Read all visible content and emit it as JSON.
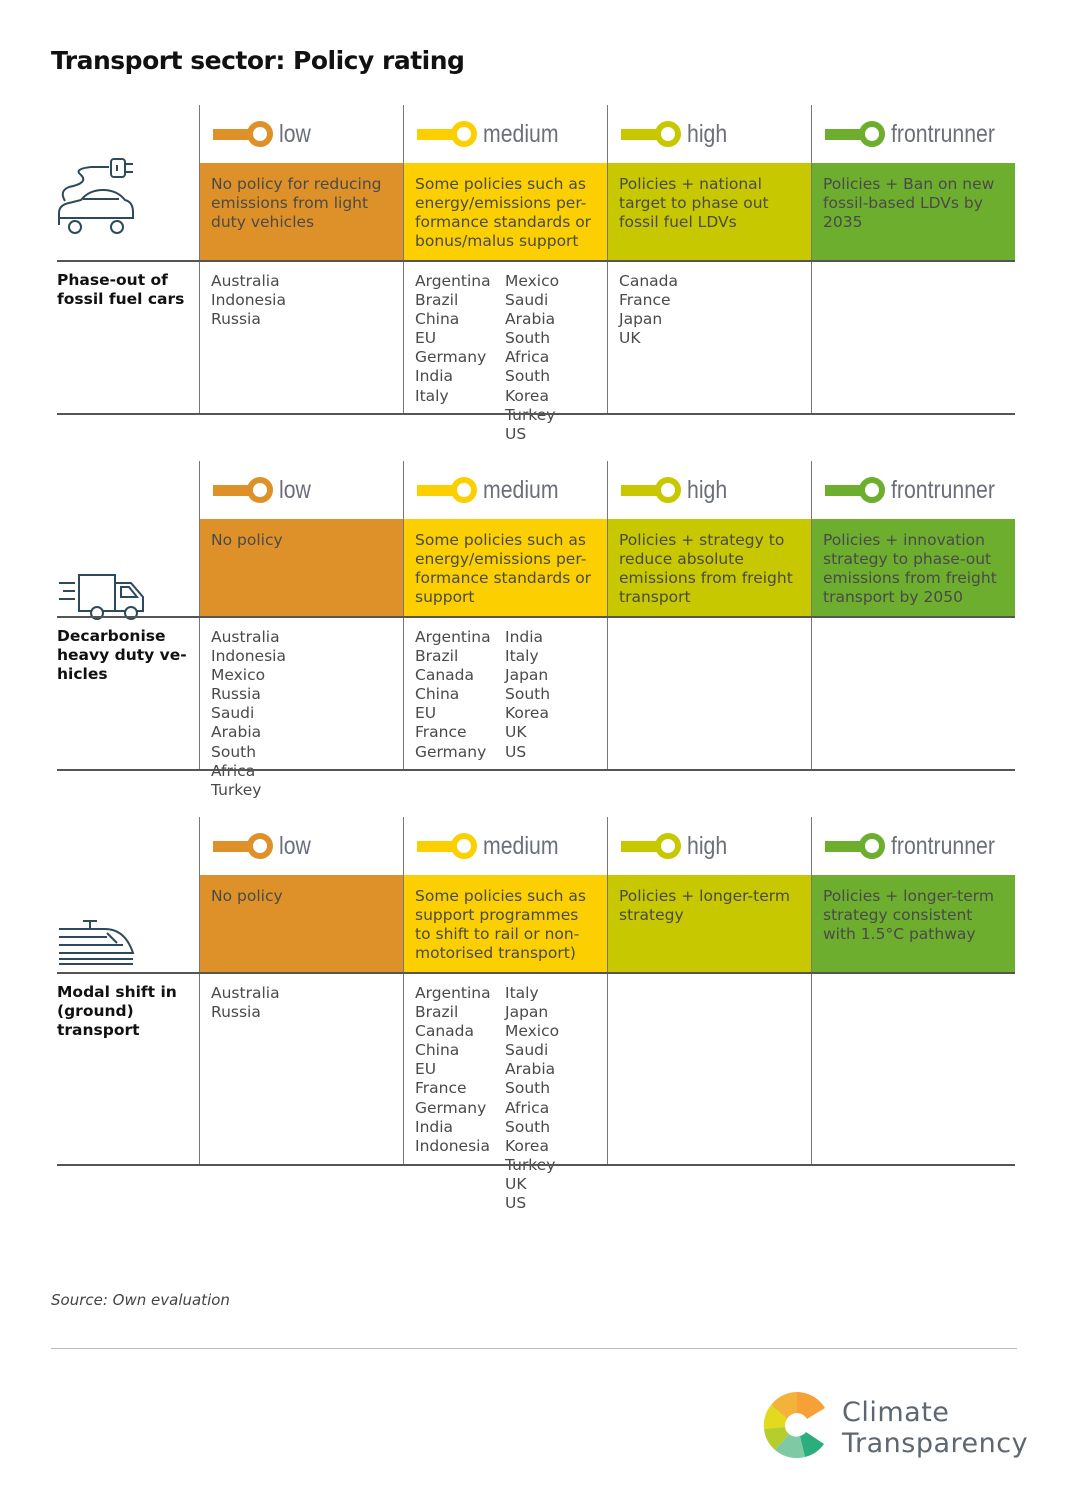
{
  "title": "Transport sector: Policy rating",
  "colors": {
    "low": "#DE9128",
    "medium": "#FCD000",
    "high": "#C8C800",
    "frontrunner": "#6DAE2F"
  },
  "levels": [
    "low",
    "medium",
    "high",
    "frontrunner"
  ],
  "sections": [
    {
      "label": "Phase-out of fossil fuel cars",
      "icon": "electric-car-icon",
      "descriptions": [
        "No policy for reducing emissions from light duty vehicles",
        "Some policies such as energy/emissions per-formance standards or bonus/malus support",
        "Policies + national target to phase out fossil fuel LDVs",
        "Policies + Ban on new fossil-based LDVs by 2035"
      ],
      "countries": [
        [
          [
            "Australia",
            "Indonesia",
            "Russia"
          ]
        ],
        [
          [
            "Argentina",
            "Brazil",
            "China",
            "EU",
            "Germany",
            "India",
            "Italy"
          ],
          [
            "Mexico",
            "Saudi Arabia",
            "South Africa",
            "South Korea",
            "Turkey",
            "US"
          ]
        ],
        [
          [
            "Canada",
            "France",
            "Japan",
            "UK"
          ]
        ],
        []
      ]
    },
    {
      "label": "Decarbonise heavy duty ve-hicles",
      "icon": "truck-icon",
      "descriptions": [
        "No policy",
        "Some policies such as energy/emissions per-formance standards or support",
        "Policies + strategy to reduce absolute emissions from freight transport",
        "Policies + innovation strategy to phase-out emissions from freight transport by 2050"
      ],
      "countries": [
        [
          [
            "Australia",
            "Indonesia",
            "Mexico",
            "Russia",
            "Saudi Arabia",
            "South Africa",
            "Turkey"
          ]
        ],
        [
          [
            "Argentina",
            "Brazil",
            "Canada",
            "China",
            "EU",
            "France",
            "Germany"
          ],
          [
            "India",
            "Italy",
            "Japan",
            "South Korea",
            "UK",
            "US"
          ]
        ],
        [],
        []
      ]
    },
    {
      "label": "Modal shift in (ground) transport",
      "icon": "train-icon",
      "descriptions": [
        "No policy",
        "Some policies such as support programmes to shift to rail or non-motorised transport)",
        "Policies + longer-term strategy",
        "Policies + longer-term strategy consistent with 1.5°C pathway"
      ],
      "countries": [
        [
          [
            "Australia",
            "Russia"
          ]
        ],
        [
          [
            "Argentina",
            "Brazil",
            "Canada",
            "China",
            "EU",
            "France",
            "Germany",
            "India",
            "Indonesia"
          ],
          [
            "Italy",
            "Japan",
            "Mexico",
            "Saudi Arabia",
            "South Africa",
            "South Korea",
            "Turkey",
            "UK",
            "US"
          ]
        ],
        [],
        []
      ]
    }
  ],
  "source": "Source: Own evaluation",
  "logo": {
    "line1": "Climate",
    "line2": "Transparency"
  }
}
